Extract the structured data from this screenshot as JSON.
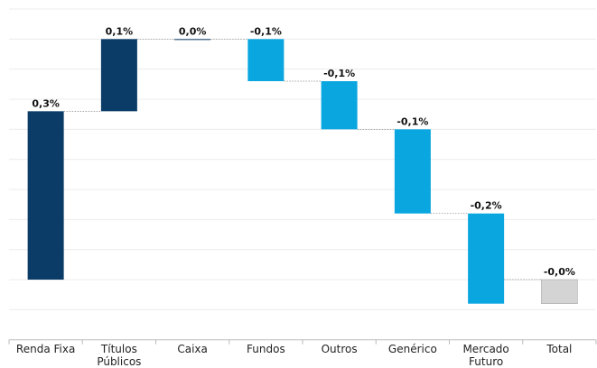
{
  "chart_data": {
    "type": "waterfall",
    "categories": [
      "Renda Fixa",
      "Títulos Públicos",
      "Caixa",
      "Fundos",
      "Outros",
      "Genérico",
      "Mercado Futuro",
      "Total"
    ],
    "values": [
      0.28,
      0.12,
      0.0,
      -0.07,
      -0.08,
      -0.14,
      -0.15,
      -0.04
    ],
    "value_labels": [
      "0,3%",
      "0,1%",
      "0,0%",
      "-0,1%",
      "-0,1%",
      "-0,1%",
      "-0,2%",
      "-0,0%"
    ],
    "colors": [
      "#0b3c68",
      "#0b3c68",
      "#0b3c68",
      "#0aa6e0",
      "#0aa6e0",
      "#0aa6e0",
      "#0aa6e0",
      "#d4d4d4"
    ],
    "ylim": [
      -0.1,
      0.45
    ],
    "yticks": [
      -0.05,
      0,
      0.05,
      0.1,
      0.15,
      0.2,
      0.25,
      0.3,
      0.35,
      0.4,
      0.45
    ],
    "grid": true
  }
}
